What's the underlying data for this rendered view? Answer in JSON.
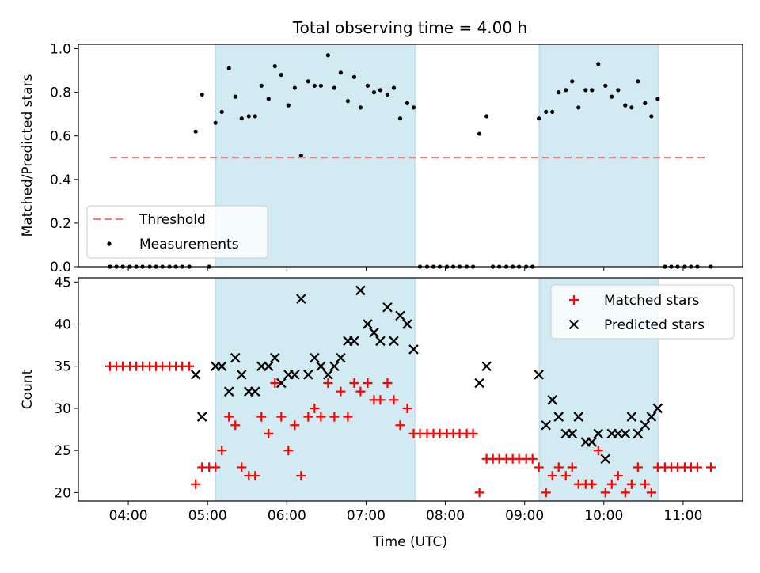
{
  "chart_data": {
    "title": "Total observing time = 4.00 h",
    "xlabel": "Time (UTC)",
    "x_ticks": [
      "04:00",
      "05:00",
      "06:00",
      "07:00",
      "08:00",
      "09:00",
      "10:00",
      "11:00"
    ],
    "x_tick_values": [
      4,
      5,
      6,
      7,
      8,
      9,
      10,
      11
    ],
    "xlim": [
      "03:22",
      "11:45"
    ],
    "xlim_hours": [
      3.37,
      11.75
    ],
    "shaded_windows": [
      [
        "05:06",
        "07:37"
      ],
      [
        "09:11",
        "10:41"
      ]
    ],
    "shade_color": "#add8e6",
    "panels": [
      {
        "type": "scatter",
        "ylabel": "Matched/Predicted stars",
        "ylim": [
          0,
          1.02
        ],
        "y_ticks": [
          0.0,
          0.2,
          0.4,
          0.6,
          0.8,
          1.0
        ],
        "legend_position": "lower-left",
        "threshold": {
          "name": "Threshold",
          "value": 0.5,
          "x_range": [
            3.77,
            11.33
          ],
          "color": "#f08080",
          "style": "dashed"
        },
        "series": [
          {
            "name": "Measurements",
            "color": "#000000",
            "marker": "dot",
            "x": [
              3.77,
              3.85,
              3.93,
              4.02,
              4.1,
              4.18,
              4.27,
              4.35,
              4.43,
              4.52,
              4.6,
              4.68,
              4.77,
              4.85,
              4.93,
              5.02,
              5.1,
              5.18,
              5.27,
              5.35,
              5.43,
              5.52,
              5.6,
              5.68,
              5.77,
              5.85,
              5.93,
              6.02,
              6.1,
              6.18,
              6.27,
              6.35,
              6.43,
              6.52,
              6.6,
              6.68,
              6.77,
              6.85,
              6.93,
              7.02,
              7.1,
              7.18,
              7.27,
              7.35,
              7.43,
              7.52,
              7.6,
              7.68,
              7.77,
              7.85,
              7.93,
              8.02,
              8.1,
              8.18,
              8.27,
              8.35,
              8.43,
              8.52,
              8.6,
              8.68,
              8.77,
              8.85,
              8.93,
              9.02,
              9.1,
              9.18,
              9.27,
              9.35,
              9.43,
              9.52,
              9.6,
              9.68,
              9.77,
              9.85,
              9.93,
              10.02,
              10.1,
              10.18,
              10.27,
              10.35,
              10.43,
              10.52,
              10.6,
              10.68,
              10.77,
              10.85,
              10.93,
              11.02,
              11.1,
              11.18,
              11.35
            ],
            "y": [
              0,
              0,
              0,
              0,
              0,
              0,
              0,
              0,
              0,
              0,
              0,
              0,
              0,
              0.62,
              0.79,
              0,
              0.66,
              0.71,
              0.91,
              0.78,
              0.68,
              0.69,
              0.69,
              0.83,
              0.77,
              0.92,
              0.88,
              0.74,
              0.82,
              0.51,
              0.85,
              0.83,
              0.83,
              0.97,
              0.82,
              0.89,
              0.76,
              0.87,
              0.73,
              0.83,
              0.8,
              0.81,
              0.79,
              0.82,
              0.68,
              0.75,
              0.73,
              0,
              0,
              0,
              0,
              0,
              0,
              0,
              0,
              0,
              0.61,
              0.69,
              0,
              0,
              0,
              0,
              0,
              0,
              0,
              0.68,
              0.71,
              0.71,
              0.8,
              0.81,
              0.85,
              0.73,
              0.81,
              0.81,
              0.93,
              0.83,
              0.78,
              0.81,
              0.74,
              0.73,
              0.85,
              0.75,
              0.69,
              0.77,
              0,
              0,
              0,
              0,
              0,
              0,
              0
            ]
          }
        ]
      },
      {
        "type": "scatter",
        "ylabel": "Count",
        "ylim": [
          19,
          45.5
        ],
        "y_ticks": [
          20,
          25,
          30,
          35,
          40,
          45
        ],
        "legend_position": "upper-right",
        "series": [
          {
            "name": "Matched stars",
            "color": "#ff0000",
            "marker": "plus",
            "x": [
              3.77,
              3.85,
              3.93,
              4.02,
              4.1,
              4.18,
              4.27,
              4.35,
              4.43,
              4.52,
              4.6,
              4.68,
              4.77,
              4.85,
              4.93,
              5.02,
              5.1,
              5.18,
              5.27,
              5.35,
              5.43,
              5.52,
              5.6,
              5.68,
              5.77,
              5.85,
              5.93,
              6.02,
              6.1,
              6.18,
              6.27,
              6.35,
              6.43,
              6.52,
              6.6,
              6.68,
              6.77,
              6.85,
              6.93,
              7.02,
              7.1,
              7.18,
              7.27,
              7.35,
              7.43,
              7.52,
              7.6,
              7.68,
              7.77,
              7.85,
              7.93,
              8.02,
              8.1,
              8.18,
              8.27,
              8.35,
              8.43,
              8.52,
              8.6,
              8.68,
              8.77,
              8.85,
              8.93,
              9.02,
              9.1,
              9.18,
              9.27,
              9.35,
              9.43,
              9.52,
              9.6,
              9.68,
              9.77,
              9.85,
              9.93,
              10.02,
              10.1,
              10.18,
              10.27,
              10.35,
              10.43,
              10.52,
              10.6,
              10.68,
              10.77,
              10.85,
              10.93,
              11.02,
              11.1,
              11.18,
              11.35
            ],
            "y": [
              35,
              35,
              35,
              35,
              35,
              35,
              35,
              35,
              35,
              35,
              35,
              35,
              35,
              21,
              23,
              23,
              23,
              25,
              29,
              28,
              23,
              22,
              22,
              29,
              27,
              33,
              29,
              25,
              28,
              22,
              29,
              30,
              29,
              33,
              29,
              32,
              29,
              33,
              32,
              33,
              31,
              31,
              33,
              31,
              28,
              30,
              27,
              27,
              27,
              27,
              27,
              27,
              27,
              27,
              27,
              27,
              20,
              24,
              24,
              24,
              24,
              24,
              24,
              24,
              24,
              23,
              20,
              22,
              23,
              22,
              23,
              21,
              21,
              21,
              25,
              20,
              21,
              22,
              20,
              21,
              23,
              21,
              20,
              23,
              23,
              23,
              23,
              23,
              23,
              23,
              23
            ]
          },
          {
            "name": "Predicted stars",
            "color": "#000000",
            "marker": "x",
            "x": [
              4.85,
              4.93,
              5.1,
              5.18,
              5.27,
              5.35,
              5.43,
              5.52,
              5.6,
              5.68,
              5.77,
              5.85,
              5.93,
              6.02,
              6.1,
              6.18,
              6.27,
              6.35,
              6.43,
              6.52,
              6.6,
              6.68,
              6.77,
              6.85,
              6.93,
              7.02,
              7.1,
              7.18,
              7.27,
              7.35,
              7.43,
              7.52,
              7.6,
              8.43,
              8.52,
              9.18,
              9.27,
              9.35,
              9.43,
              9.52,
              9.6,
              9.68,
              9.77,
              9.85,
              9.93,
              10.02,
              10.1,
              10.18,
              10.27,
              10.35,
              10.43,
              10.52,
              10.6,
              10.68
            ],
            "y": [
              34,
              29,
              35,
              35,
              32,
              36,
              34,
              32,
              32,
              35,
              35,
              36,
              33,
              34,
              34,
              43,
              34,
              36,
              35,
              34,
              35,
              36,
              38,
              38,
              44,
              40,
              39,
              38,
              42,
              38,
              41,
              40,
              37,
              33,
              35,
              34,
              28,
              31,
              29,
              27,
              27,
              29,
              26,
              26,
              27,
              24,
              27,
              27,
              27,
              29,
              27,
              28,
              29,
              30
            ]
          }
        ]
      }
    ]
  }
}
